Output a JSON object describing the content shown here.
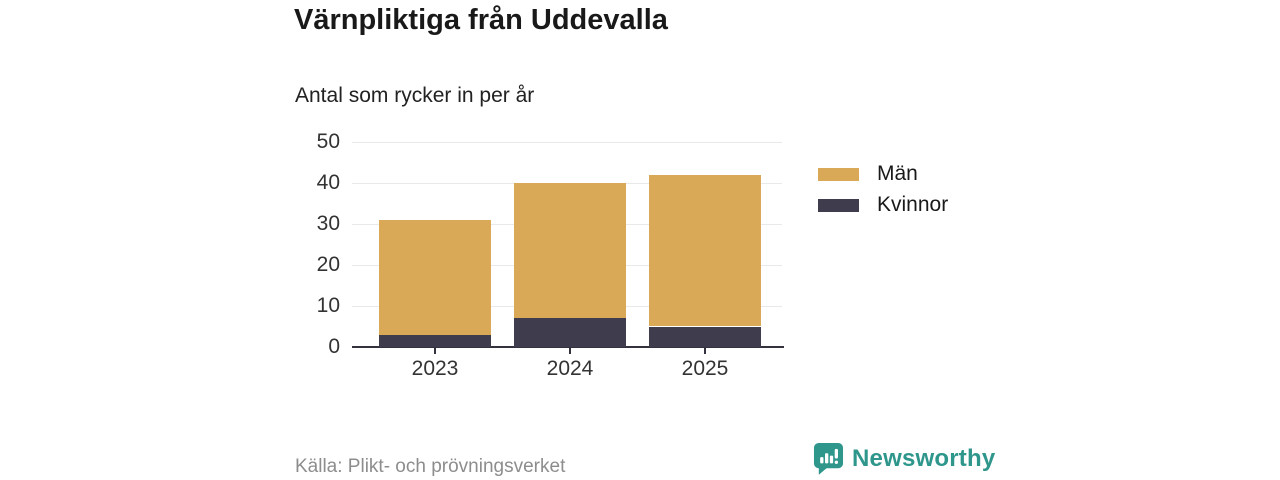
{
  "title": "Värnpliktiga från Uddevalla",
  "subtitle": "Antal som rycker in per år",
  "source": "Källa: Plikt- och prövningsverket",
  "brand": {
    "name": "Newsworthy",
    "color": "#2F968C",
    "icon": "bar-chart-speech-bubble"
  },
  "colors": {
    "men": "#D9A957",
    "women": "#3E3C4D",
    "grid": "#E9E9E9",
    "axis": "#33323F",
    "tick_text": "#333333",
    "title_text": "#191919",
    "source_text": "#8D8D8D"
  },
  "legend": {
    "items": [
      {
        "label": "Män",
        "color": "#D9A957"
      },
      {
        "label": "Kvinnor",
        "color": "#3E3C4D"
      }
    ]
  },
  "chart_data": {
    "type": "bar",
    "stacked": true,
    "title": "Värnpliktiga från Uddevalla",
    "subtitle": "Antal som rycker in per år",
    "xlabel": "",
    "ylabel": "",
    "categories": [
      "2023",
      "2024",
      "2025"
    ],
    "series": [
      {
        "name": "Män",
        "color": "#D9A957",
        "values": [
          28,
          33,
          37
        ]
      },
      {
        "name": "Kvinnor",
        "color": "#3E3C4D",
        "values": [
          3,
          7,
          5
        ]
      }
    ],
    "stack_bottom_to_top": [
      "Kvinnor",
      "Män"
    ],
    "totals": [
      31,
      40,
      42
    ],
    "ylim": [
      0,
      50
    ],
    "yticks": [
      0,
      10,
      20,
      30,
      40,
      50
    ],
    "grid": true,
    "legend_position": "right"
  }
}
